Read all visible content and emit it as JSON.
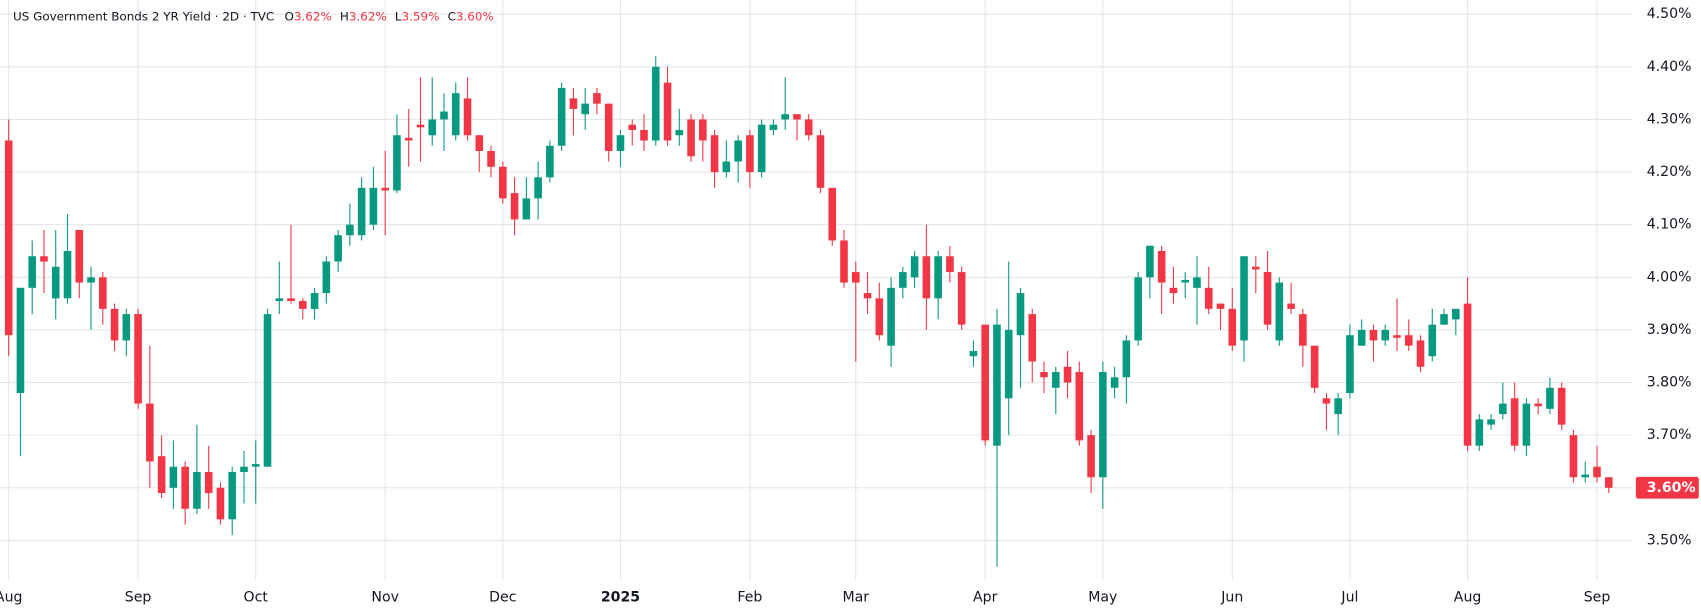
{
  "chart_data": {
    "type": "candlestick",
    "title": "US Government Bonds 2 YR Yield · 2D · TVC",
    "ohlc_labels": [
      "O",
      "H",
      "L",
      "C"
    ],
    "ohlc_values": [
      "3.62%",
      "3.62%",
      "3.59%",
      "3.60%"
    ],
    "last_price_label": "3.60%",
    "up_color": "#089981",
    "down_color": "#f23645",
    "grid": true,
    "categories": [
      "Aug",
      null,
      null,
      null,
      null,
      null,
      null,
      null,
      null,
      null,
      null,
      "Sep",
      null,
      null,
      null,
      null,
      null,
      null,
      null,
      null,
      null,
      "Oct",
      null,
      null,
      null,
      null,
      null,
      null,
      null,
      null,
      null,
      null,
      "Nov",
      null,
      null,
      null,
      null,
      null,
      null,
      null,
      null,
      null,
      "Dec",
      null,
      null,
      null,
      null,
      null,
      null,
      null,
      null,
      null,
      "2025",
      null,
      null,
      null,
      null,
      null,
      null,
      null,
      null,
      null,
      null,
      "Feb",
      null,
      null,
      null,
      null,
      null,
      null,
      null,
      null,
      "Mar",
      null,
      null,
      null,
      null,
      null,
      null,
      null,
      null,
      null,
      null,
      "Apr",
      null,
      null,
      null,
      null,
      null,
      null,
      null,
      null,
      null,
      "May",
      null,
      null,
      null,
      null,
      null,
      null,
      null,
      null,
      null,
      null,
      "Jun",
      null,
      null,
      null,
      null,
      null,
      null,
      null,
      null,
      null,
      "Jul",
      null,
      null,
      null,
      null,
      null,
      null,
      null,
      null,
      null,
      "Aug",
      null,
      null,
      null,
      null,
      null,
      null,
      null,
      null,
      null,
      null,
      "Sep",
      null
    ],
    "open": [
      4.26,
      3.78,
      3.98,
      4.04,
      3.96,
      3.96,
      4.09,
      3.99,
      4.0,
      3.94,
      3.88,
      3.93,
      3.76,
      3.66,
      3.6,
      3.64,
      3.56,
      3.63,
      3.6,
      3.54,
      3.63,
      3.64,
      3.64,
      3.955,
      3.96,
      3.955,
      3.94,
      3.97,
      4.03,
      4.08,
      4.08,
      4.1,
      4.17,
      4.165,
      4.265,
      4.29,
      4.27,
      4.3,
      4.27,
      4.34,
      4.27,
      4.24,
      4.21,
      4.16,
      4.11,
      4.15,
      4.19,
      4.25,
      4.34,
      4.31,
      4.35,
      4.33,
      4.24,
      4.29,
      4.28,
      4.26,
      4.37,
      4.27,
      4.3,
      4.3,
      4.27,
      4.2,
      4.22,
      4.27,
      4.2,
      4.28,
      4.3,
      4.31,
      4.3,
      4.27,
      4.17,
      4.07,
      4.01,
      3.97,
      3.96,
      3.87,
      3.98,
      4.0,
      4.04,
      3.96,
      4.04,
      4.01,
      3.85,
      3.91,
      3.68,
      3.77,
      3.89,
      3.93,
      3.82,
      3.79,
      3.83,
      3.82,
      3.7,
      3.62,
      3.79,
      3.81,
      3.88,
      4.0,
      4.05,
      3.98,
      3.99,
      3.98,
      3.98,
      3.95,
      3.94,
      3.88,
      4.02,
      4.01,
      3.88,
      3.95,
      3.93,
      3.87,
      3.77,
      3.74,
      3.78,
      3.87,
      3.9,
      3.88,
      3.89,
      3.89,
      3.88,
      3.85,
      3.91,
      3.92,
      3.95,
      3.68,
      3.72,
      3.74,
      3.77,
      3.68,
      3.76,
      3.75,
      3.79,
      3.7,
      3.62,
      3.64,
      3.62
    ],
    "high": [
      4.3,
      3.98,
      4.07,
      4.09,
      4.09,
      4.12,
      4.09,
      4.02,
      4.01,
      3.95,
      3.94,
      3.94,
      3.87,
      3.7,
      3.69,
      3.65,
      3.72,
      3.68,
      3.61,
      3.64,
      3.67,
      3.69,
      3.94,
      4.03,
      4.1,
      3.96,
      3.98,
      4.04,
      4.09,
      4.14,
      4.19,
      4.21,
      4.24,
      4.31,
      4.32,
      4.38,
      4.38,
      4.35,
      4.37,
      4.38,
      4.27,
      4.25,
      4.22,
      4.19,
      4.19,
      4.22,
      4.26,
      4.37,
      4.36,
      4.36,
      4.36,
      4.33,
      4.28,
      4.3,
      4.31,
      4.42,
      4.4,
      4.32,
      4.31,
      4.31,
      4.28,
      4.26,
      4.27,
      4.28,
      4.3,
      4.3,
      4.38,
      4.31,
      4.31,
      4.28,
      4.17,
      4.09,
      4.03,
      4.01,
      3.99,
      4.0,
      4.02,
      4.05,
      4.1,
      4.05,
      4.06,
      4.02,
      3.88,
      3.91,
      3.94,
      4.03,
      3.98,
      3.94,
      3.84,
      3.83,
      3.86,
      3.84,
      3.71,
      3.84,
      3.83,
      3.89,
      4.01,
      4.06,
      4.06,
      4.02,
      4.01,
      4.04,
      4.02,
      3.95,
      3.98,
      4.04,
      4.04,
      4.05,
      4.0,
      3.99,
      3.94,
      3.87,
      3.78,
      3.78,
      3.91,
      3.92,
      3.91,
      3.91,
      3.96,
      3.92,
      3.89,
      3.94,
      3.94,
      3.94,
      4.0,
      3.74,
      3.74,
      3.8,
      3.8,
      3.77,
      3.77,
      3.81,
      3.8,
      3.71,
      3.65,
      3.68,
      3.62
    ],
    "low": [
      3.85,
      3.66,
      3.93,
      3.97,
      3.92,
      3.95,
      3.96,
      3.9,
      3.91,
      3.86,
      3.85,
      3.75,
      3.6,
      3.58,
      3.56,
      3.53,
      3.55,
      3.56,
      3.53,
      3.51,
      3.57,
      3.57,
      3.64,
      3.93,
      3.95,
      3.92,
      3.92,
      3.95,
      4.01,
      4.06,
      4.07,
      4.09,
      4.08,
      4.16,
      4.21,
      4.22,
      4.25,
      4.24,
      4.26,
      4.26,
      4.2,
      4.19,
      4.14,
      4.08,
      4.11,
      4.11,
      4.18,
      4.24,
      4.27,
      4.28,
      4.31,
      4.22,
      4.21,
      4.25,
      4.24,
      4.25,
      4.25,
      4.25,
      4.22,
      4.22,
      4.17,
      4.19,
      4.18,
      4.17,
      4.19,
      4.27,
      4.28,
      4.26,
      4.26,
      4.16,
      4.06,
      3.98,
      3.84,
      3.93,
      3.88,
      3.83,
      3.96,
      3.98,
      3.9,
      3.92,
      3.99,
      3.9,
      3.83,
      3.68,
      3.45,
      3.7,
      3.79,
      3.8,
      3.78,
      3.74,
      3.77,
      3.68,
      3.59,
      3.56,
      3.77,
      3.76,
      3.87,
      3.96,
      3.93,
      3.95,
      3.96,
      3.91,
      3.93,
      3.9,
      3.86,
      3.84,
      3.97,
      3.9,
      3.87,
      3.93,
      3.83,
      3.78,
      3.71,
      3.7,
      3.77,
      3.87,
      3.84,
      3.87,
      3.86,
      3.86,
      3.82,
      3.84,
      3.91,
      3.89,
      3.67,
      3.67,
      3.71,
      3.73,
      3.67,
      3.66,
      3.74,
      3.74,
      3.71,
      3.61,
      3.61,
      3.61,
      3.59
    ],
    "close": [
      3.89,
      3.98,
      4.04,
      4.03,
      4.02,
      4.05,
      3.99,
      4.0,
      3.94,
      3.88,
      3.93,
      3.76,
      3.65,
      3.59,
      3.64,
      3.56,
      3.63,
      3.59,
      3.54,
      3.63,
      3.64,
      3.645,
      3.93,
      3.96,
      3.955,
      3.94,
      3.97,
      4.03,
      4.08,
      4.1,
      4.17,
      4.17,
      4.165,
      4.27,
      4.26,
      4.285,
      4.3,
      4.315,
      4.35,
      4.27,
      4.24,
      4.21,
      4.15,
      4.11,
      4.15,
      4.19,
      4.25,
      4.36,
      4.32,
      4.33,
      4.33,
      4.24,
      4.27,
      4.28,
      4.26,
      4.4,
      4.26,
      4.28,
      4.23,
      4.26,
      4.2,
      4.22,
      4.26,
      4.2,
      4.29,
      4.29,
      4.31,
      4.3,
      4.27,
      4.17,
      4.07,
      3.99,
      3.99,
      3.96,
      3.89,
      3.98,
      4.01,
      4.04,
      3.96,
      4.04,
      4.01,
      3.91,
      3.86,
      3.69,
      3.91,
      3.9,
      3.97,
      3.84,
      3.81,
      3.82,
      3.8,
      3.69,
      3.62,
      3.82,
      3.81,
      3.88,
      4.0,
      4.06,
      3.99,
      3.97,
      3.995,
      4.0,
      3.94,
      3.94,
      3.87,
      4.04,
      4.015,
      3.91,
      3.99,
      3.94,
      3.87,
      3.79,
      3.76,
      3.77,
      3.89,
      3.9,
      3.88,
      3.9,
      3.885,
      3.87,
      3.83,
      3.91,
      3.93,
      3.94,
      3.68,
      3.73,
      3.73,
      3.76,
      3.68,
      3.76,
      3.755,
      3.79,
      3.72,
      3.62,
      3.625,
      3.62,
      3.6
    ],
    "ylim": [
      3.424,
      4.527
    ],
    "yticks": [
      {
        "value": 3.5,
        "label": "3.50%"
      },
      {
        "value": 3.6,
        "label": "3.60%"
      },
      {
        "value": 3.7,
        "label": "3.70%"
      },
      {
        "value": 3.8,
        "label": "3.80%"
      },
      {
        "value": 3.9,
        "label": "3.90%"
      },
      {
        "value": 4.0,
        "label": "4.00%"
      },
      {
        "value": 4.1,
        "label": "4.10%"
      },
      {
        "value": 4.2,
        "label": "4.20%"
      },
      {
        "value": 4.3,
        "label": "4.30%"
      },
      {
        "value": 4.4,
        "label": "4.40%"
      },
      {
        "value": 4.5,
        "label": "4.50%"
      }
    ]
  }
}
